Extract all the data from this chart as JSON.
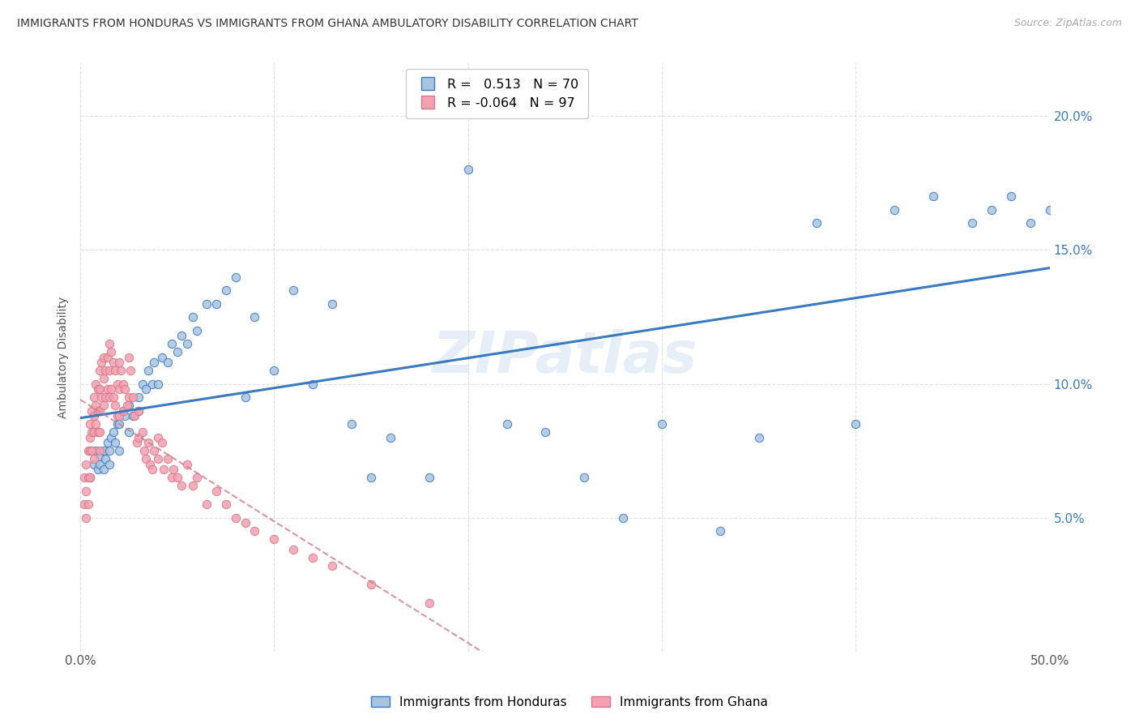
{
  "title": "IMMIGRANTS FROM HONDURAS VS IMMIGRANTS FROM GHANA AMBULATORY DISABILITY CORRELATION CHART",
  "source": "Source: ZipAtlas.com",
  "ylabel": "Ambulatory Disability",
  "legend_honduras": "Immigrants from Honduras",
  "legend_ghana": "Immigrants from Ghana",
  "r_honduras": 0.513,
  "n_honduras": 70,
  "r_ghana": -0.064,
  "n_ghana": 97,
  "xlim": [
    0.0,
    0.5
  ],
  "ylim": [
    0.0,
    0.22
  ],
  "yticks": [
    0.05,
    0.1,
    0.15,
    0.2
  ],
  "ytick_labels": [
    "5.0%",
    "10.0%",
    "15.0%",
    "20.0%"
  ],
  "xticks": [
    0.0,
    0.1,
    0.2,
    0.3,
    0.4,
    0.5
  ],
  "xtick_labels": [
    "0.0%",
    "",
    "",
    "",
    "",
    "50.0%"
  ],
  "color_honduras": "#aac4e0",
  "color_ghana": "#f4a0b0",
  "line_color_honduras": "#3a7abf",
  "line_color_ghana": "#d47a8a",
  "watermark": "ZIPatlas",
  "honduras_scatter_x": [
    0.005,
    0.007,
    0.008,
    0.009,
    0.01,
    0.01,
    0.012,
    0.012,
    0.013,
    0.014,
    0.015,
    0.015,
    0.016,
    0.017,
    0.018,
    0.019,
    0.02,
    0.02,
    0.022,
    0.023,
    0.025,
    0.025,
    0.027,
    0.03,
    0.03,
    0.032,
    0.034,
    0.035,
    0.037,
    0.038,
    0.04,
    0.042,
    0.045,
    0.047,
    0.05,
    0.052,
    0.055,
    0.058,
    0.06,
    0.065,
    0.07,
    0.075,
    0.08,
    0.085,
    0.09,
    0.1,
    0.11,
    0.12,
    0.13,
    0.14,
    0.15,
    0.16,
    0.18,
    0.2,
    0.22,
    0.24,
    0.26,
    0.28,
    0.3,
    0.33,
    0.35,
    0.38,
    0.4,
    0.42,
    0.44,
    0.46,
    0.47,
    0.48,
    0.49,
    0.5
  ],
  "honduras_scatter_y": [
    0.065,
    0.07,
    0.075,
    0.068,
    0.07,
    0.073,
    0.068,
    0.075,
    0.072,
    0.078,
    0.07,
    0.075,
    0.08,
    0.082,
    0.078,
    0.085,
    0.075,
    0.085,
    0.09,
    0.088,
    0.082,
    0.092,
    0.088,
    0.095,
    0.09,
    0.1,
    0.098,
    0.105,
    0.1,
    0.108,
    0.1,
    0.11,
    0.108,
    0.115,
    0.112,
    0.118,
    0.115,
    0.125,
    0.12,
    0.13,
    0.13,
    0.135,
    0.14,
    0.095,
    0.125,
    0.105,
    0.135,
    0.1,
    0.13,
    0.085,
    0.065,
    0.08,
    0.065,
    0.18,
    0.085,
    0.082,
    0.065,
    0.05,
    0.085,
    0.045,
    0.08,
    0.16,
    0.085,
    0.165,
    0.17,
    0.16,
    0.165,
    0.17,
    0.16,
    0.165
  ],
  "ghana_scatter_x": [
    0.002,
    0.002,
    0.003,
    0.003,
    0.003,
    0.004,
    0.004,
    0.004,
    0.005,
    0.005,
    0.005,
    0.005,
    0.006,
    0.006,
    0.006,
    0.007,
    0.007,
    0.007,
    0.007,
    0.008,
    0.008,
    0.008,
    0.009,
    0.009,
    0.009,
    0.01,
    0.01,
    0.01,
    0.01,
    0.01,
    0.011,
    0.011,
    0.012,
    0.012,
    0.012,
    0.013,
    0.013,
    0.014,
    0.014,
    0.015,
    0.015,
    0.015,
    0.016,
    0.016,
    0.017,
    0.017,
    0.018,
    0.018,
    0.019,
    0.019,
    0.02,
    0.02,
    0.02,
    0.021,
    0.022,
    0.022,
    0.023,
    0.024,
    0.025,
    0.025,
    0.026,
    0.027,
    0.028,
    0.029,
    0.03,
    0.03,
    0.032,
    0.033,
    0.034,
    0.035,
    0.036,
    0.037,
    0.038,
    0.04,
    0.04,
    0.042,
    0.043,
    0.045,
    0.047,
    0.048,
    0.05,
    0.052,
    0.055,
    0.058,
    0.06,
    0.065,
    0.07,
    0.075,
    0.08,
    0.085,
    0.09,
    0.1,
    0.11,
    0.12,
    0.13,
    0.15,
    0.18
  ],
  "ghana_scatter_y": [
    0.065,
    0.055,
    0.07,
    0.06,
    0.05,
    0.075,
    0.065,
    0.055,
    0.085,
    0.08,
    0.075,
    0.065,
    0.09,
    0.082,
    0.075,
    0.095,
    0.088,
    0.082,
    0.072,
    0.1,
    0.092,
    0.085,
    0.098,
    0.09,
    0.082,
    0.105,
    0.098,
    0.09,
    0.082,
    0.075,
    0.108,
    0.095,
    0.11,
    0.102,
    0.092,
    0.105,
    0.095,
    0.11,
    0.098,
    0.115,
    0.105,
    0.095,
    0.112,
    0.098,
    0.108,
    0.095,
    0.105,
    0.092,
    0.1,
    0.088,
    0.108,
    0.098,
    0.088,
    0.105,
    0.1,
    0.09,
    0.098,
    0.092,
    0.11,
    0.095,
    0.105,
    0.095,
    0.088,
    0.078,
    0.09,
    0.08,
    0.082,
    0.075,
    0.072,
    0.078,
    0.07,
    0.068,
    0.075,
    0.08,
    0.072,
    0.078,
    0.068,
    0.072,
    0.065,
    0.068,
    0.065,
    0.062,
    0.07,
    0.062,
    0.065,
    0.055,
    0.06,
    0.055,
    0.05,
    0.048,
    0.045,
    0.042,
    0.038,
    0.035,
    0.032,
    0.025,
    0.018
  ],
  "background_color": "#ffffff",
  "grid_color": "#e0e0e0"
}
